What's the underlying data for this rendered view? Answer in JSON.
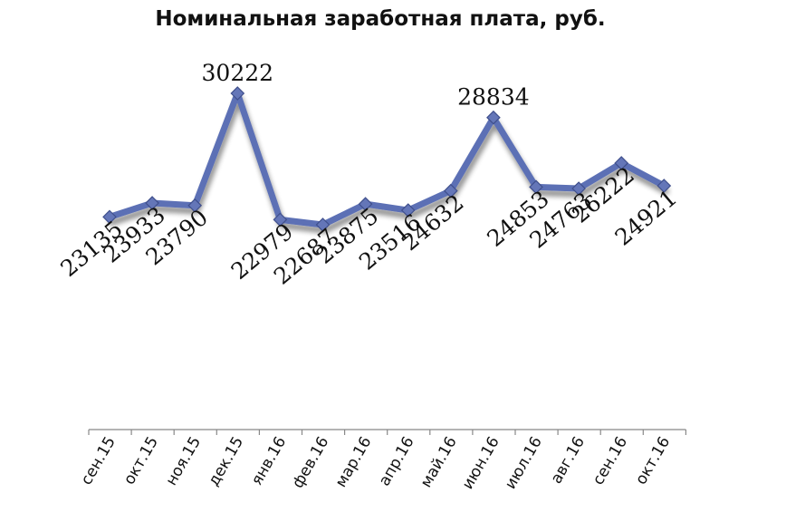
{
  "chart_data": {
    "type": "line",
    "title": "Номинальная заработная плата, руб.",
    "xlabel": "",
    "ylabel": "",
    "categories": [
      "сен.15",
      "окт.15",
      "ноя.15",
      "дек.15",
      "янв.16",
      "фев.16",
      "мар.16",
      "апр.16",
      "май.16",
      "июн.16",
      "июл.16",
      "авг.16",
      "сен.16",
      "окт.16"
    ],
    "series": [
      {
        "values": [
          23135,
          23933,
          23790,
          30222,
          22979,
          22687,
          23875,
          23516,
          24632,
          28834,
          24853,
          24763,
          26222,
          24921
        ]
      }
    ],
    "line_color": "#5B6FB5",
    "marker": "diamond",
    "grid": false,
    "legend": "none"
  }
}
